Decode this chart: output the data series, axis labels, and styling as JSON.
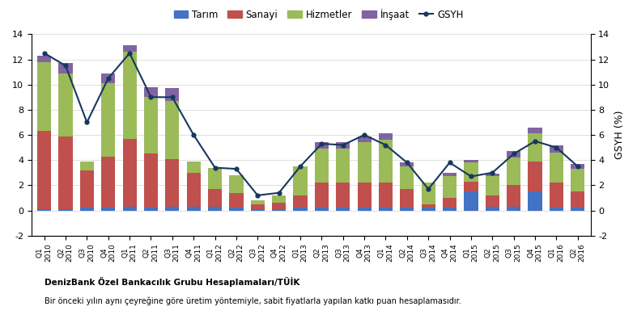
{
  "categories": [
    "2010 Q1",
    "2010 Q2",
    "2010 Q3",
    "2010 Q4",
    "2011 Q1",
    "2011 Q2",
    "2011 Q3",
    "2011 Q4",
    "2012 Q1",
    "2012 Q2",
    "2012 Q3",
    "2012 Q4",
    "2013 Q1",
    "2013 Q2",
    "2013 Q3",
    "2013 Q4",
    "2014 Q1",
    "2014 Q2",
    "2014 Q3",
    "2014 Q4",
    "2015 Q1",
    "2015 Q2",
    "2015 Q3",
    "2015 Q4",
    "2016 Q1",
    "2016 Q2"
  ],
  "tarim": [
    0.1,
    0.1,
    0.2,
    0.2,
    0.3,
    0.2,
    0.3,
    0.3,
    0.3,
    0.2,
    0.1,
    0.1,
    0.2,
    0.2,
    0.2,
    0.2,
    0.2,
    0.2,
    0.2,
    0.2,
    1.5,
    0.3,
    0.3,
    1.5,
    0.2,
    0.2
  ],
  "sanayi": [
    6.2,
    5.8,
    3.0,
    4.1,
    5.4,
    4.3,
    3.8,
    2.7,
    1.4,
    1.2,
    0.4,
    0.5,
    1.0,
    2.0,
    2.0,
    2.0,
    2.0,
    1.5,
    0.3,
    0.8,
    0.8,
    0.9,
    1.7,
    2.4,
    2.0,
    1.3
  ],
  "hizmetler": [
    5.5,
    5.0,
    0.7,
    5.8,
    6.9,
    4.5,
    4.6,
    0.9,
    1.7,
    1.4,
    0.3,
    0.6,
    2.3,
    2.7,
    2.7,
    3.2,
    3.4,
    1.8,
    1.7,
    1.7,
    1.5,
    1.5,
    2.2,
    2.2,
    2.4,
    1.8
  ],
  "insaat": [
    0.5,
    0.8,
    0.0,
    0.8,
    0.5,
    0.8,
    1.0,
    0.0,
    0.0,
    0.0,
    0.0,
    0.0,
    0.0,
    0.5,
    0.5,
    0.5,
    0.5,
    0.3,
    0.0,
    0.3,
    0.2,
    0.2,
    0.5,
    0.5,
    0.6,
    0.4
  ],
  "gsyh": [
    12.5,
    11.5,
    7.0,
    10.5,
    12.5,
    9.0,
    9.0,
    6.0,
    3.4,
    3.3,
    1.2,
    1.4,
    3.5,
    5.3,
    5.2,
    6.0,
    5.2,
    3.8,
    1.7,
    3.8,
    2.7,
    3.0,
    4.5,
    5.5,
    5.0,
    3.5
  ],
  "tarim_color": "#4472c4",
  "sanayi_color": "#c0504d",
  "hizmetler_color": "#9bbb59",
  "insaat_color": "#8064a2",
  "gsyh_color": "#17375e",
  "ylim": [
    -2,
    14
  ],
  "yticks": [
    -2,
    0,
    2,
    4,
    6,
    8,
    10,
    12,
    14
  ],
  "ylabel_right": "GSYH (%)",
  "legend_labels": [
    "Tarım",
    "Sanayi",
    "Hizmetler",
    "İnşaat",
    "GSYH"
  ],
  "source_bold": "DenizBank Özel Bankacılık Grubu Hesaplamaları/TÜİK",
  "source_normal": "Bir önceki yılın aynı çeyreğine göre üretim yöntemiyle, sabit fiyatlarla yapılan katkı puan hesaplamasıdır."
}
